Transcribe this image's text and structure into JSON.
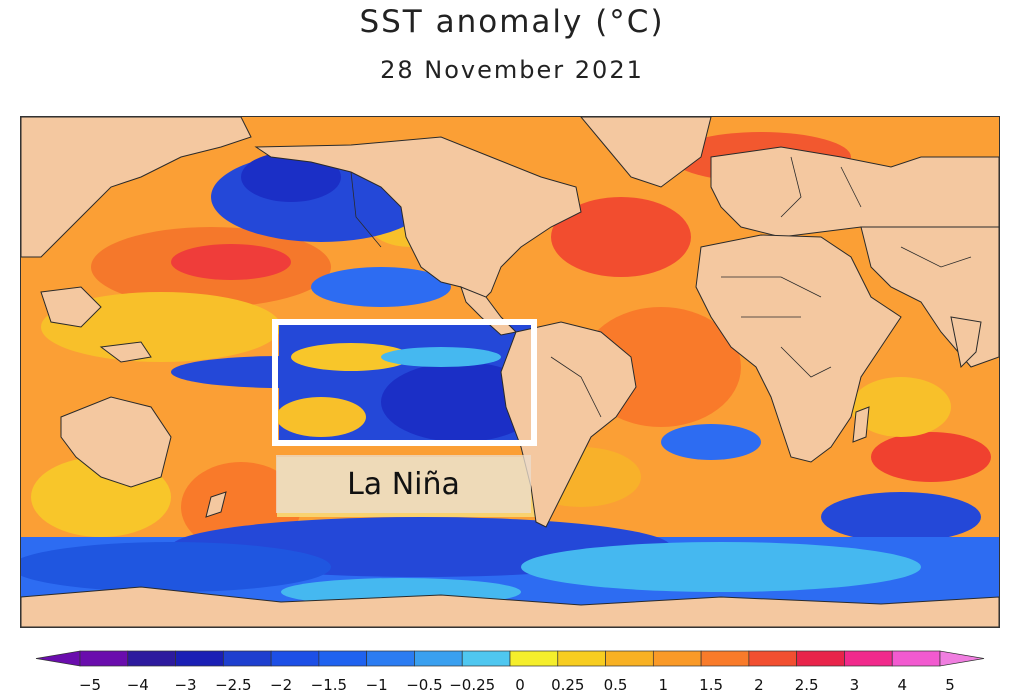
{
  "title": "SST anomaly (°C)",
  "subtitle": "28 November 2021",
  "annotation": {
    "label": "La Niña"
  },
  "colorbar": {
    "ticks": [
      "-5",
      "-4",
      "-3",
      "-2.5",
      "-2",
      "-1.5",
      "-1",
      "-0.5",
      "-0.25",
      "0",
      "0.25",
      "0.5",
      "1",
      "1.5",
      "2",
      "2.5",
      "3",
      "4",
      "5"
    ],
    "colors": [
      "#6a0dad",
      "#2d1b9e",
      "#1a1fb5",
      "#1e3fcf",
      "#1d4fe6",
      "#1f62f0",
      "#2b7cf2",
      "#3aa0f0",
      "#4fc7f0",
      "#f5ee2b",
      "#f7cd21",
      "#f8b123",
      "#fa9a28",
      "#f97b2a",
      "#f24f30",
      "#e8244a",
      "#f12a8c",
      "#f25ad0"
    ],
    "left_arrow_color": "#6a0dad",
    "right_arrow_color": "#f07ee0"
  },
  "colors": {
    "land": "#f4c8a0",
    "border": "#2a2a2a",
    "warm": "#ff9a2e",
    "hot": "#f0412f",
    "cool": "#2d6cf2",
    "cold": "#1b2fc6",
    "cyan": "#45b8f0",
    "yellow": "#f8d52a"
  }
}
